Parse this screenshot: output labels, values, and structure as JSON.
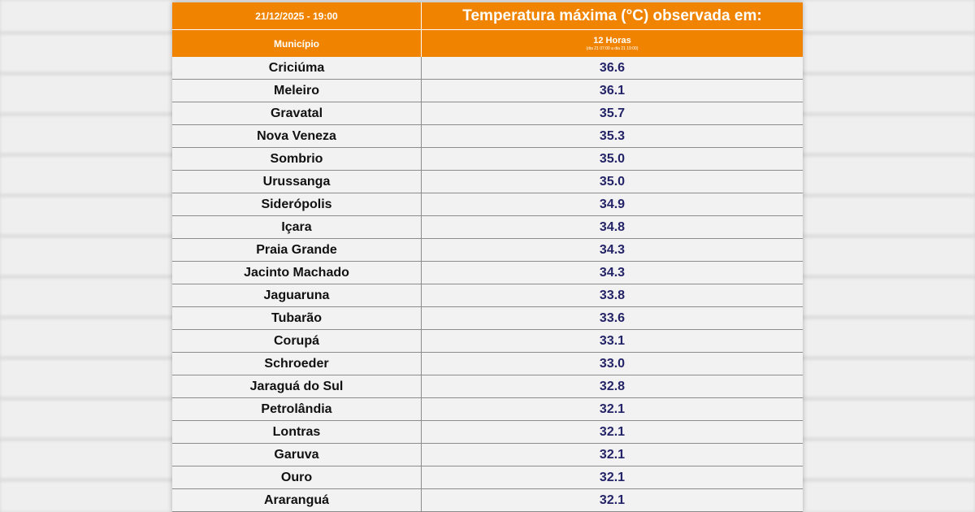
{
  "header": {
    "timestamp": "21/12/2025 - 19:00",
    "title": "Temperatura máxima (°C) observada em:",
    "municipio_label": "Município",
    "period_label": "12 Horas",
    "period_sub": "(dia 21 07:00 a dia 21 19:00)"
  },
  "rows": [
    {
      "city": "Criciúma",
      "value": "36.6"
    },
    {
      "city": "Meleiro",
      "value": "36.1"
    },
    {
      "city": "Gravatal",
      "value": "35.7"
    },
    {
      "city": "Nova Veneza",
      "value": "35.3"
    },
    {
      "city": "Sombrio",
      "value": "35.0"
    },
    {
      "city": "Urussanga",
      "value": "35.0"
    },
    {
      "city": "Sideró­polis",
      "value": "34.9"
    },
    {
      "city": "Içara",
      "value": "34.8"
    },
    {
      "city": "Praia Grande",
      "value": "34.3"
    },
    {
      "city": "Jacinto Machado",
      "value": "34.3"
    },
    {
      "city": "Jaguaruna",
      "value": "33.8"
    },
    {
      "city": "Tubarão",
      "value": "33.6"
    },
    {
      "city": "Corupá",
      "value": "33.1"
    },
    {
      "city": "Schroeder",
      "value": "33.0"
    },
    {
      "city": "Jaraguá do Sul",
      "value": "32.8"
    },
    {
      "city": "Petrolândia",
      "value": "32.1"
    },
    {
      "city": "Lontras",
      "value": "32.1"
    },
    {
      "city": "Garuva",
      "value": "32.1"
    },
    {
      "city": "Ouro",
      "value": "32.1"
    },
    {
      "city": "Araranguá",
      "value": "32.1"
    }
  ],
  "colors": {
    "header_orange": "#f08400",
    "value_text": "#232368",
    "row_bg": "#f2f2f2"
  }
}
